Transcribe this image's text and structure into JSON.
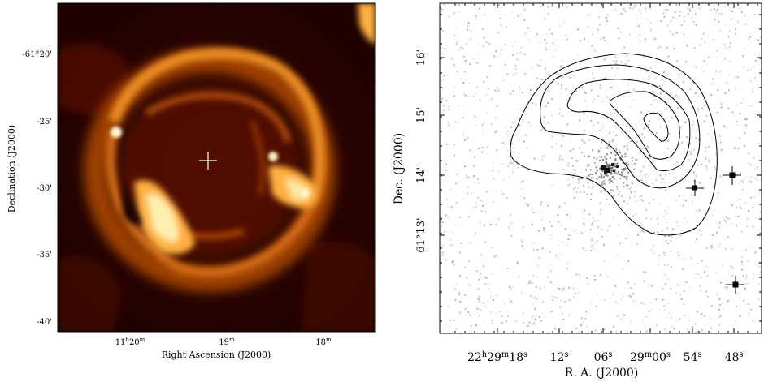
{
  "left_panel": {
    "y_axis_label": "Declination (J2000)",
    "x_axis_label": "Right Ascension (J2000)",
    "y_ticks": [
      "-61°20'",
      "-25'",
      "-30'",
      "-35'",
      "-40'"
    ],
    "x_ticks": [
      {
        "main": "11",
        "sup1": "h",
        "mid": "20",
        "sup2": "m"
      },
      {
        "main": "19",
        "sup1": "m",
        "mid": "",
        "sup2": ""
      },
      {
        "main": "18",
        "sup1": "m",
        "mid": "",
        "sup2": ""
      }
    ],
    "colormap": [
      "#1a0000",
      "#5a0a00",
      "#a83a00",
      "#e07a10",
      "#ffd070",
      "#fff2c0"
    ]
  },
  "right_panel": {
    "y_axis_label": "Dec. (J2000)",
    "x_axis_label": "R. A. (J2000)",
    "y_ticks": [
      "16'",
      "15'",
      "14'",
      "61°13'"
    ],
    "x_ticks": [
      {
        "main": "22",
        "sup1": "h",
        "mid": "29",
        "sup2": "m",
        "end": "18",
        "sup3": "s"
      },
      {
        "main": "12",
        "sup1": "s"
      },
      {
        "main": "06",
        "sup1": "s"
      },
      {
        "main": "29",
        "sup1": "m",
        "mid": "00",
        "sup2": "s"
      },
      {
        "main": "54",
        "sup1": "s"
      },
      {
        "main": "48",
        "sup1": "s"
      }
    ]
  }
}
